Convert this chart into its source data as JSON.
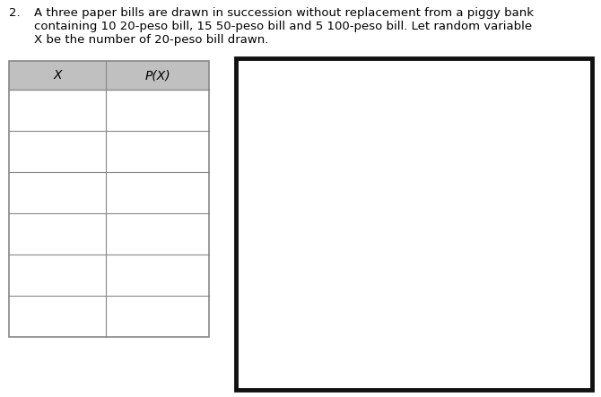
{
  "problem_number": "2.",
  "problem_text_line1": "A three paper bills are drawn in succession without replacement from a piggy bank",
  "problem_text_line2": "containing 10 20-peso bill, 15 50-peso bill and 5 100-peso bill. Let random variable",
  "problem_text_line3": "X be the number of 20-peso bill drawn.",
  "col1_header": "X",
  "col2_header": "P(X)",
  "num_data_rows": 6,
  "header_bg_color": "#c0c0c0",
  "table_border_color": "#888888",
  "box_border_color": "#111111",
  "bg_color": "#ffffff",
  "text_color": "#000000",
  "font_size_problem": 9.5,
  "font_size_table": 10,
  "fig_width": 6.7,
  "fig_height": 4.43,
  "dpi": 100
}
